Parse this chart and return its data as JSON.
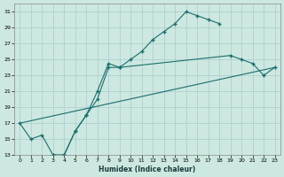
{
  "title": "",
  "xlabel": "Humidex (Indice chaleur)",
  "bg_color": "#cce8e0",
  "grid_color": "#aacccc",
  "line_color": "#1a6e6e",
  "line1_x": [
    0,
    1,
    2,
    3,
    4,
    5,
    6,
    7,
    8,
    9,
    10,
    11,
    12,
    13,
    14,
    15,
    16,
    17,
    18
  ],
  "line1_y": [
    17,
    15,
    15.5,
    13,
    13,
    16,
    18,
    20,
    24,
    24,
    25,
    26,
    27.5,
    28.5,
    29.5,
    31,
    30.5,
    30,
    29.5
  ],
  "line2_x": [
    3,
    4,
    5,
    6,
    7,
    8,
    9,
    19,
    20,
    21,
    22,
    23
  ],
  "line2_y": [
    13,
    13,
    16,
    18,
    21,
    24.5,
    24,
    25.5,
    25,
    24.5,
    23,
    24
  ],
  "line3_x": [
    0,
    23
  ],
  "line3_y": [
    17,
    24
  ],
  "ylim": [
    13,
    32
  ],
  "xlim": [
    -0.5,
    23.5
  ],
  "yticks": [
    13,
    15,
    17,
    19,
    21,
    23,
    25,
    27,
    29,
    31
  ],
  "xticks": [
    0,
    1,
    2,
    3,
    4,
    5,
    6,
    7,
    8,
    9,
    10,
    11,
    12,
    13,
    14,
    15,
    16,
    17,
    18,
    19,
    20,
    21,
    22,
    23
  ]
}
